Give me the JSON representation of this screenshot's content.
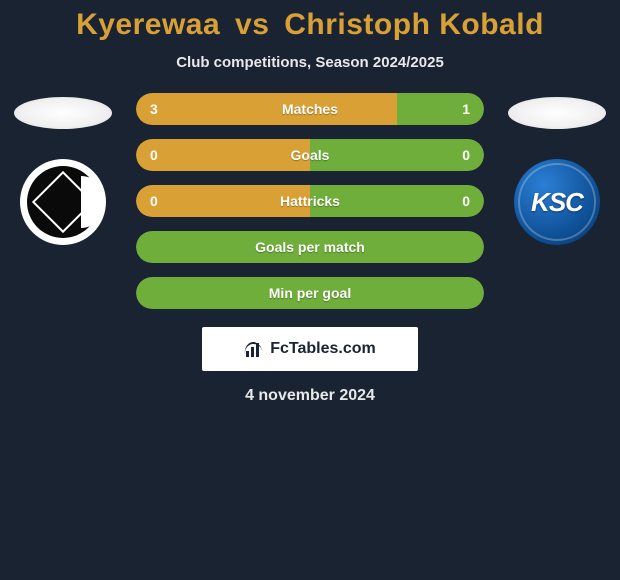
{
  "title": {
    "player1": "Kyerewaa",
    "vs": "vs",
    "player2": "Christoph Kobald",
    "color": "#d9a035"
  },
  "subtitle": "Club competitions, Season 2024/2025",
  "colors": {
    "left": "#d9a035",
    "right": "#6fae3a",
    "neutral_left": "#d9a035",
    "neutral_right": "#6fae3a",
    "background": "#1a2332",
    "text": "#ffffff"
  },
  "stats": [
    {
      "label": "Matches",
      "left_val": "3",
      "right_val": "1",
      "left_pct": 75,
      "right_pct": 25,
      "show_vals": true
    },
    {
      "label": "Goals",
      "left_val": "0",
      "right_val": "0",
      "left_pct": 50,
      "right_pct": 50,
      "show_vals": true
    },
    {
      "label": "Hattricks",
      "left_val": "0",
      "right_val": "0",
      "left_pct": 50,
      "right_pct": 50,
      "show_vals": true
    },
    {
      "label": "Goals per match",
      "left_val": "",
      "right_val": "",
      "left_pct": 100,
      "right_pct": 0,
      "show_vals": false,
      "full_color": "#6fae3a"
    },
    {
      "label": "Min per goal",
      "left_val": "",
      "right_val": "",
      "left_pct": 100,
      "right_pct": 0,
      "show_vals": false,
      "full_color": "#6fae3a"
    }
  ],
  "brand": {
    "text": "FcTables.com"
  },
  "date": "4 november 2024",
  "crest_right_text": "KSC"
}
